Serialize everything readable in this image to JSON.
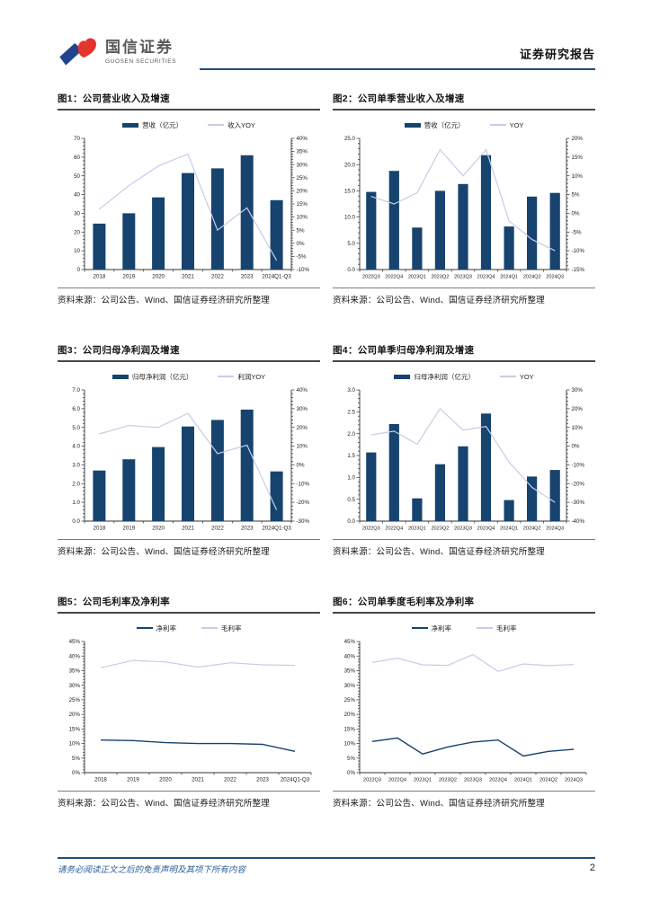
{
  "header": {
    "logo_cn": "国信证券",
    "logo_en": "GUOSEN SECURITIES",
    "report_type": "证券研究报告"
  },
  "footer": {
    "disclaimer": "请务必阅读正文之后的免责声明及其项下所有内容",
    "page_number": "2"
  },
  "colors": {
    "bar_navy": "#17436f",
    "line_lavender": "#c8cce8",
    "header_rule": "#1f4e79",
    "logo_blue": "#21448c",
    "logo_red": "#e5332d",
    "footer_text": "#2b5f9b"
  },
  "charts": [
    {
      "title": "图1：公司营业收入及增速",
      "source": "资料来源：公司公告、Wind、国信证券经济研究所整理",
      "chart_data": {
        "type": "bar",
        "legend_position": "top",
        "categories": [
          "2018",
          "2019",
          "2020",
          "2021",
          "2022",
          "2023",
          "2024Q1-Q3"
        ],
        "series": [
          {
            "name": "营收（亿元）",
            "kind": "bar",
            "axis": "left",
            "color": "#17436f",
            "values": [
              24.5,
              30.0,
              38.5,
              51.5,
              54.0,
              61.0,
              37.0
            ]
          },
          {
            "name": "收入YOY",
            "kind": "line",
            "axis": "right",
            "color": "#c8cce8",
            "values": [
              13,
              22,
              29.5,
              34,
              5,
              13.5,
              -6.5
            ]
          }
        ],
        "left_axis": {
          "min": 0,
          "max": 70,
          "step": 10,
          "format": "int"
        },
        "right_axis": {
          "min": -10,
          "max": 40,
          "step": 5,
          "format": "pct"
        }
      }
    },
    {
      "title": "图2：公司单季营业收入及增速",
      "source": "资料来源：公司公告、Wind、国信证券经济研究所整理",
      "chart_data": {
        "type": "bar",
        "legend_position": "top",
        "categories": [
          "2022Q3",
          "2022Q4",
          "2023Q1",
          "2023Q2",
          "2023Q3",
          "2023Q4",
          "2024Q1",
          "2024Q2",
          "2024Q3"
        ],
        "series": [
          {
            "name": "营收（亿元）",
            "kind": "bar",
            "axis": "left",
            "color": "#17436f",
            "values": [
              14.8,
              18.8,
              8.0,
              15.0,
              16.3,
              21.8,
              8.2,
              13.9,
              14.6
            ]
          },
          {
            "name": "YOY",
            "kind": "line",
            "axis": "right",
            "color": "#c8cce8",
            "values": [
              4.5,
              2.5,
              5.5,
              17,
              10,
              17,
              -2,
              -7,
              -10
            ]
          }
        ],
        "left_axis": {
          "min": 0,
          "max": 25,
          "step": 5,
          "format": "dec1"
        },
        "right_axis": {
          "min": -15,
          "max": 20,
          "step": 5,
          "format": "pct"
        }
      }
    },
    {
      "title": "图3：公司归母净利润及增速",
      "source": "资料来源：公司公告、Wind、国信证券经济研究所整理",
      "chart_data": {
        "type": "bar",
        "legend_position": "top",
        "categories": [
          "2018",
          "2019",
          "2020",
          "2021",
          "2022",
          "2023",
          "2024Q1-Q3"
        ],
        "series": [
          {
            "name": "归母净利润（亿元）",
            "kind": "bar",
            "axis": "left",
            "color": "#17436f",
            "values": [
              2.7,
              3.3,
              3.95,
              5.05,
              5.4,
              5.95,
              2.65
            ]
          },
          {
            "name": "利润YOY",
            "kind": "line",
            "axis": "right",
            "color": "#c8cce8",
            "values": [
              16.5,
              21,
              20,
              27.5,
              6,
              10.5,
              -24
            ]
          }
        ],
        "left_axis": {
          "min": 0,
          "max": 7,
          "step": 1,
          "format": "dec1"
        },
        "right_axis": {
          "min": -30,
          "max": 40,
          "step": 10,
          "format": "pct"
        }
      }
    },
    {
      "title": "图4：公司单季归母净利润及增速",
      "source": "资料来源：公司公告、Wind、国信证券经济研究所整理",
      "chart_data": {
        "type": "bar",
        "legend_position": "top",
        "categories": [
          "2022Q3",
          "2022Q4",
          "2023Q1",
          "2023Q2",
          "2023Q3",
          "2023Q4",
          "2024Q1",
          "2024Q2",
          "2024Q3"
        ],
        "series": [
          {
            "name": "归母净利润（亿元）",
            "kind": "bar",
            "axis": "left",
            "color": "#17436f",
            "values": [
              1.57,
              2.22,
              0.52,
              1.3,
              1.71,
              2.46,
              0.48,
              1.02,
              1.17
            ]
          },
          {
            "name": "YOY",
            "kind": "line",
            "axis": "right",
            "color": "#c8cce8",
            "values": [
              6,
              8,
              1,
              20,
              8.5,
              10.5,
              -8.5,
              -22,
              -30
            ]
          }
        ],
        "left_axis": {
          "min": 0,
          "max": 3,
          "step": 0.5,
          "format": "dec1"
        },
        "right_axis": {
          "min": -40,
          "max": 30,
          "step": 10,
          "format": "pct"
        }
      }
    },
    {
      "title": "图5：公司毛利率及净利率",
      "source": "资料来源：公司公告、Wind、国信证券经济研究所整理",
      "chart_data": {
        "type": "line",
        "legend_position": "top",
        "categories": [
          "2018",
          "2019",
          "2020",
          "2021",
          "2022",
          "2023",
          "2024Q1-Q3"
        ],
        "series": [
          {
            "name": "净利率",
            "kind": "line",
            "axis": "left",
            "color": "#17436f",
            "values": [
              11.2,
              11.0,
              10.3,
              10.0,
              10.0,
              9.7,
              7.3
            ]
          },
          {
            "name": "毛利率",
            "kind": "line",
            "axis": "left",
            "color": "#c8cce8",
            "values": [
              36.0,
              38.5,
              38.0,
              36.2,
              37.7,
              37.0,
              36.8
            ]
          }
        ],
        "left_axis": {
          "min": 0,
          "max": 45,
          "step": 5,
          "format": "pct"
        }
      }
    },
    {
      "title": "图6：公司单季度毛利率及净利率",
      "source": "资料来源：公司公告、Wind、国信证券经济研究所整理",
      "chart_data": {
        "type": "line",
        "legend_position": "top",
        "categories": [
          "2022Q3",
          "2022Q4",
          "2023Q1",
          "2023Q2",
          "2023Q3",
          "2023Q4",
          "2024Q1",
          "2024Q2",
          "2024Q3"
        ],
        "series": [
          {
            "name": "净利率",
            "kind": "line",
            "axis": "left",
            "color": "#17436f",
            "values": [
              10.7,
              11.9,
              6.4,
              8.8,
              10.5,
              11.2,
              5.7,
              7.3,
              8.0
            ]
          },
          {
            "name": "毛利率",
            "kind": "line",
            "axis": "left",
            "color": "#c8cce8",
            "values": [
              37.8,
              39.3,
              37.0,
              36.8,
              40.5,
              34.7,
              37.3,
              36.7,
              37.1
            ]
          }
        ],
        "left_axis": {
          "min": 0,
          "max": 45,
          "step": 5,
          "format": "pct"
        }
      }
    }
  ]
}
